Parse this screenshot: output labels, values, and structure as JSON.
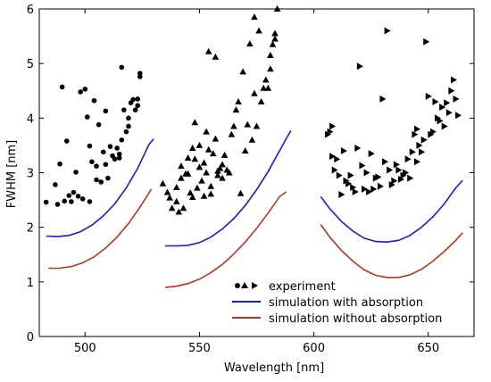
{
  "chart_data": {
    "type": "scatter",
    "xlabel": "Wavelength [nm]",
    "ylabel": "FWHM [nm]",
    "xlim": [
      480,
      670
    ],
    "ylim": [
      0,
      6
    ],
    "xticks": [
      500,
      550,
      600,
      650
    ],
    "yticks": [
      0,
      1,
      2,
      3,
      4,
      5,
      6
    ],
    "grid": false,
    "legend_position": "bottom-right",
    "legend": {
      "experiment": "experiment",
      "with_absorption": "simulation with absorption",
      "without_absorption": "simulation without absorption"
    },
    "colors": {
      "experiment": "#000000",
      "with_absorption": "#1a1acc",
      "without_absorption": "#b5361f"
    },
    "experiment_circles": [
      [
        483,
        2.46
      ],
      [
        487,
        2.78
      ],
      [
        488,
        2.42
      ],
      [
        489,
        3.16
      ],
      [
        490,
        4.57
      ],
      [
        491,
        2.48
      ],
      [
        492,
        3.58
      ],
      [
        493,
        2.58
      ],
      [
        494,
        2.47
      ],
      [
        495,
        2.64
      ],
      [
        496,
        3.01
      ],
      [
        497,
        2.57
      ],
      [
        498,
        4.48
      ],
      [
        499,
        2.52
      ],
      [
        500,
        4.53
      ],
      [
        501,
        4.02
      ],
      [
        502,
        3.49
      ],
      [
        502,
        2.47
      ],
      [
        503,
        3.2
      ],
      [
        504,
        4.32
      ],
      [
        505,
        2.87
      ],
      [
        505,
        3.12
      ],
      [
        506,
        3.88
      ],
      [
        507,
        2.83
      ],
      [
        508,
        3.38
      ],
      [
        509,
        4.13
      ],
      [
        509,
        3.15
      ],
      [
        510,
        2.9
      ],
      [
        511,
        3.48
      ],
      [
        512,
        3.31
      ],
      [
        513,
        3.25
      ],
      [
        514,
        3.45
      ],
      [
        515,
        3.27
      ],
      [
        515,
        3.34
      ],
      [
        516,
        4.93
      ],
      [
        516,
        3.6
      ],
      [
        517,
        4.15
      ],
      [
        518,
        3.75
      ],
      [
        519,
        4.0
      ],
      [
        519,
        3.85
      ],
      [
        520,
        4.28
      ],
      [
        521,
        4.34
      ],
      [
        522,
        4.15
      ],
      [
        523,
        4.35
      ],
      [
        523,
        4.23
      ],
      [
        524,
        4.82
      ],
      [
        524,
        4.76
      ]
    ],
    "experiment_triangles_up": [
      [
        534,
        2.8
      ],
      [
        536,
        2.64
      ],
      [
        537,
        2.54
      ],
      [
        538,
        2.35
      ],
      [
        540,
        2.73
      ],
      [
        540,
        2.47
      ],
      [
        541,
        2.28
      ],
      [
        542,
        2.9
      ],
      [
        542,
        3.12
      ],
      [
        543,
        2.35
      ],
      [
        544,
        2.98
      ],
      [
        545,
        3.27
      ],
      [
        545,
        2.98
      ],
      [
        546,
        2.63
      ],
      [
        547,
        3.45
      ],
      [
        547,
        2.55
      ],
      [
        548,
        3.25
      ],
      [
        548,
        3.92
      ],
      [
        549,
        2.72
      ],
      [
        550,
        3.1
      ],
      [
        550,
        3.5
      ],
      [
        551,
        2.85
      ],
      [
        552,
        3.18
      ],
      [
        552,
        2.57
      ],
      [
        553,
        3.75
      ],
      [
        553,
        3.0
      ],
      [
        554,
        3.42
      ],
      [
        554,
        5.22
      ],
      [
        555,
        2.75
      ],
      [
        555,
        2.61
      ],
      [
        556,
        3.35
      ],
      [
        557,
        5.12
      ],
      [
        557,
        3.62
      ],
      [
        558,
        2.95
      ],
      [
        558,
        3.03
      ],
      [
        559,
        3.08
      ],
      [
        560,
        3.15
      ],
      [
        560,
        2.9
      ],
      [
        561,
        3.32
      ],
      [
        562,
        3.05
      ],
      [
        563,
        3.0
      ],
      [
        564,
        3.7
      ],
      [
        565,
        3.85
      ],
      [
        566,
        4.15
      ],
      [
        567,
        4.3
      ],
      [
        568,
        2.62
      ],
      [
        569,
        4.85
      ],
      [
        570,
        3.4
      ],
      [
        571,
        3.88
      ],
      [
        572,
        5.36
      ],
      [
        573,
        3.6
      ],
      [
        574,
        5.85
      ],
      [
        574,
        4.45
      ],
      [
        575,
        3.85
      ],
      [
        576,
        5.6
      ],
      [
        577,
        4.3
      ],
      [
        578,
        4.55
      ],
      [
        579,
        4.7
      ],
      [
        580,
        4.55
      ],
      [
        581,
        5.15
      ],
      [
        581,
        4.9
      ],
      [
        582,
        5.35
      ],
      [
        583,
        5.55
      ],
      [
        583,
        5.45
      ],
      [
        584,
        6.0
      ]
    ],
    "experiment_triangles_right": [
      [
        606,
        3.7
      ],
      [
        607,
        3.75
      ],
      [
        608,
        3.3
      ],
      [
        608,
        3.85
      ],
      [
        609,
        3.05
      ],
      [
        610,
        3.25
      ],
      [
        611,
        2.95
      ],
      [
        612,
        2.6
      ],
      [
        613,
        3.4
      ],
      [
        614,
        2.85
      ],
      [
        615,
        2.8
      ],
      [
        616,
        2.95
      ],
      [
        617,
        2.73
      ],
      [
        618,
        2.65
      ],
      [
        619,
        3.45
      ],
      [
        620,
        4.95
      ],
      [
        621,
        3.13
      ],
      [
        622,
        2.7
      ],
      [
        623,
        3.0
      ],
      [
        624,
        2.65
      ],
      [
        625,
        3.35
      ],
      [
        626,
        2.7
      ],
      [
        627,
        2.9
      ],
      [
        628,
        2.92
      ],
      [
        629,
        2.75
      ],
      [
        630,
        4.35
      ],
      [
        631,
        3.2
      ],
      [
        632,
        5.6
      ],
      [
        633,
        3.05
      ],
      [
        634,
        2.78
      ],
      [
        635,
        2.85
      ],
      [
        636,
        3.15
      ],
      [
        637,
        3.05
      ],
      [
        638,
        2.88
      ],
      [
        639,
        2.95
      ],
      [
        640,
        3.0
      ],
      [
        641,
        3.25
      ],
      [
        642,
        2.9
      ],
      [
        643,
        3.38
      ],
      [
        644,
        3.7
      ],
      [
        645,
        3.8
      ],
      [
        645,
        3.2
      ],
      [
        646,
        3.5
      ],
      [
        647,
        3.38
      ],
      [
        648,
        3.6
      ],
      [
        649,
        5.4
      ],
      [
        650,
        4.4
      ],
      [
        651,
        3.7
      ],
      [
        652,
        3.75
      ],
      [
        653,
        4.3
      ],
      [
        654,
        4.0
      ],
      [
        655,
        3.95
      ],
      [
        656,
        4.2
      ],
      [
        657,
        3.85
      ],
      [
        658,
        4.28
      ],
      [
        659,
        4.1
      ],
      [
        660,
        4.5
      ],
      [
        661,
        4.7
      ],
      [
        662,
        4.35
      ],
      [
        663,
        4.05
      ]
    ],
    "with_absorption_curves": [
      [
        [
          483,
          1.84
        ],
        [
          488,
          1.83
        ],
        [
          493,
          1.85
        ],
        [
          498,
          1.92
        ],
        [
          503,
          2.04
        ],
        [
          508,
          2.21
        ],
        [
          513,
          2.43
        ],
        [
          518,
          2.72
        ],
        [
          523,
          3.08
        ],
        [
          528,
          3.52
        ],
        [
          530,
          3.62
        ]
      ],
      [
        [
          535,
          1.66
        ],
        [
          540,
          1.66
        ],
        [
          545,
          1.67
        ],
        [
          550,
          1.72
        ],
        [
          555,
          1.82
        ],
        [
          560,
          1.97
        ],
        [
          565,
          2.16
        ],
        [
          570,
          2.4
        ],
        [
          575,
          2.69
        ],
        [
          580,
          3.02
        ],
        [
          585,
          3.4
        ],
        [
          588,
          3.63
        ],
        [
          590,
          3.77
        ]
      ],
      [
        [
          603,
          2.56
        ],
        [
          607,
          2.34
        ],
        [
          612,
          2.11
        ],
        [
          617,
          1.93
        ],
        [
          622,
          1.8
        ],
        [
          627,
          1.74
        ],
        [
          632,
          1.73
        ],
        [
          637,
          1.76
        ],
        [
          642,
          1.85
        ],
        [
          647,
          2.0
        ],
        [
          652,
          2.19
        ],
        [
          657,
          2.43
        ],
        [
          662,
          2.72
        ],
        [
          665,
          2.86
        ]
      ]
    ],
    "without_absorption_curves": [
      [
        [
          484,
          1.25
        ],
        [
          489,
          1.25
        ],
        [
          494,
          1.28
        ],
        [
          499,
          1.35
        ],
        [
          504,
          1.46
        ],
        [
          509,
          1.62
        ],
        [
          514,
          1.82
        ],
        [
          519,
          2.07
        ],
        [
          524,
          2.37
        ],
        [
          529,
          2.7
        ]
      ],
      [
        [
          535,
          0.9
        ],
        [
          540,
          0.92
        ],
        [
          545,
          0.97
        ],
        [
          550,
          1.05
        ],
        [
          555,
          1.17
        ],
        [
          560,
          1.32
        ],
        [
          565,
          1.51
        ],
        [
          570,
          1.73
        ],
        [
          575,
          1.98
        ],
        [
          580,
          2.26
        ],
        [
          585,
          2.56
        ],
        [
          588,
          2.65
        ]
      ],
      [
        [
          603,
          2.05
        ],
        [
          607,
          1.82
        ],
        [
          612,
          1.58
        ],
        [
          617,
          1.38
        ],
        [
          622,
          1.22
        ],
        [
          627,
          1.12
        ],
        [
          632,
          1.08
        ],
        [
          637,
          1.08
        ],
        [
          642,
          1.13
        ],
        [
          647,
          1.23
        ],
        [
          652,
          1.38
        ],
        [
          657,
          1.56
        ],
        [
          662,
          1.76
        ],
        [
          665,
          1.9
        ]
      ]
    ]
  }
}
